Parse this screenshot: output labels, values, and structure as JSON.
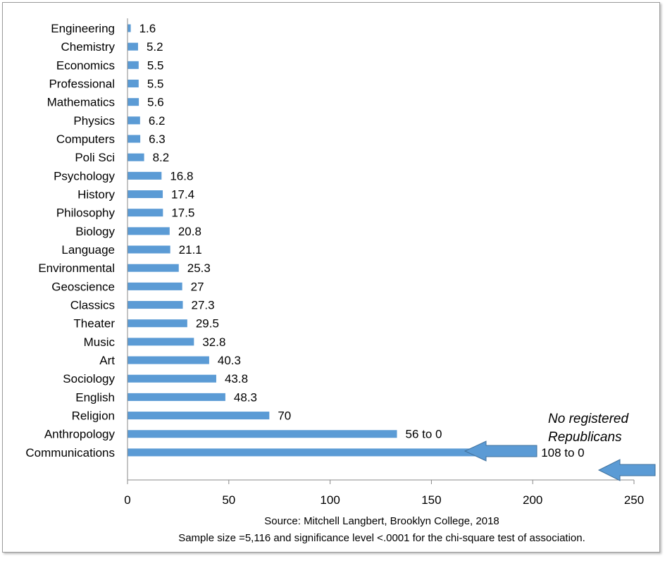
{
  "chart_data": {
    "type": "bar",
    "orientation": "horizontal",
    "categories": [
      "Engineering",
      "Chemistry",
      "Economics",
      "Professional",
      "Mathematics",
      "Physics",
      "Computers",
      "Poli Sci",
      "Psychology",
      "History",
      "Philosophy",
      "Biology",
      "Language",
      "Environmental",
      "Geoscience",
      "Classics",
      "Theater",
      "Music",
      "Art",
      "Sociology",
      "English",
      "Religion",
      "Anthropology",
      "Communications"
    ],
    "values": [
      1.6,
      5.2,
      5.5,
      5.5,
      5.6,
      6.2,
      6.3,
      8.2,
      16.8,
      17.4,
      17.5,
      20.8,
      21.1,
      25.3,
      27,
      27.3,
      29.5,
      32.8,
      40.3,
      43.8,
      48.3,
      70,
      133,
      200
    ],
    "data_labels": [
      "1.6",
      "5.2",
      "5.5",
      "5.5",
      "5.6",
      "6.2",
      "6.3",
      "8.2",
      "16.8",
      "17.4",
      "17.5",
      "20.8",
      "21.1",
      "25.3",
      "27",
      "27.3",
      "29.5",
      "32.8",
      "40.3",
      "43.8",
      "48.3",
      "70",
      "56 to 0",
      "108 to 0"
    ],
    "xlim": [
      0,
      250
    ],
    "xticks": [
      0,
      50,
      100,
      150,
      200,
      250
    ],
    "grid": false,
    "bar_color": "#5b9bd5",
    "annotation": {
      "line1": "No registered",
      "line2": "Republicans"
    },
    "source_line1": "Source: Mitchell  Langbert, Brooklyn College, 2018",
    "source_line2": "Sample size =5,116 and significance level <.0001 for the chi-square test of association."
  }
}
